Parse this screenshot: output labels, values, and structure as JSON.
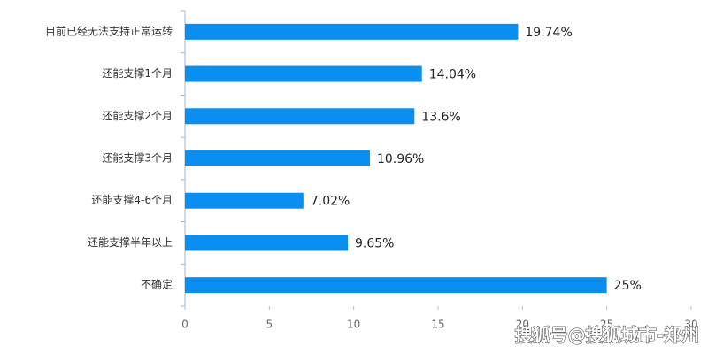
{
  "chart_data": {
    "type": "bar",
    "orientation": "horizontal",
    "categories": [
      "目前已经无法支持正常运转",
      "还能支撑1个月",
      "还能支撑2个月",
      "还能支撑3个月",
      "还能支撑4-6个月",
      "还能支撑半年以上",
      "不确定"
    ],
    "values": [
      19.74,
      14.04,
      13.6,
      10.96,
      7.02,
      9.65,
      25
    ],
    "value_labels": [
      "19.74%",
      "14.04%",
      "13.6%",
      "10.96%",
      "7.02%",
      "9.65%",
      "25%"
    ],
    "color": "#0a8ef0",
    "xlim": [
      0,
      30
    ],
    "xticks": [
      0,
      5,
      10,
      15,
      20,
      25,
      30
    ],
    "grid": false
  },
  "watermark": "搜狐号@搜狐城市-郑州"
}
